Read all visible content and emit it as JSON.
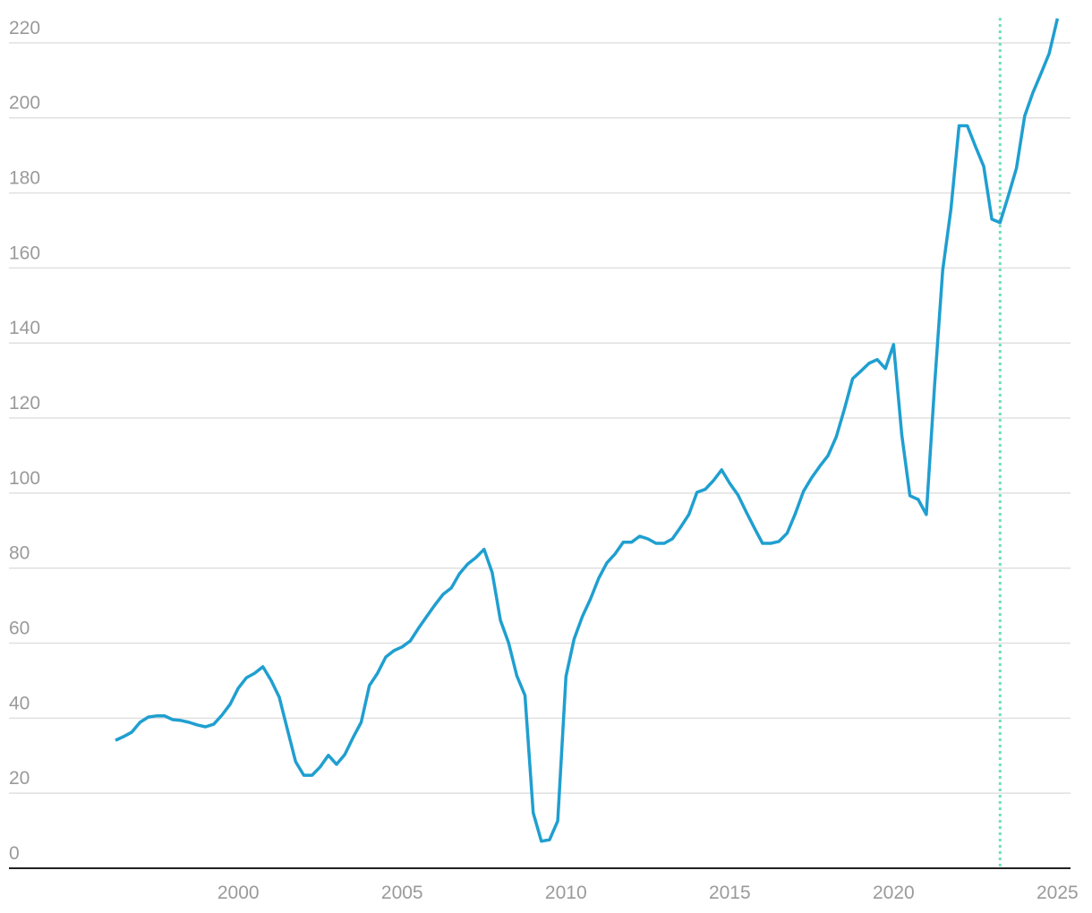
{
  "chart_data": {
    "type": "line",
    "x": [
      1996.25,
      1996.5,
      1996.75,
      1997,
      1997.25,
      1997.5,
      1997.75,
      1998,
      1998.25,
      1998.5,
      1998.75,
      1999,
      1999.25,
      1999.5,
      1999.75,
      2000,
      2000.25,
      2000.5,
      2000.75,
      2001,
      2001.25,
      2001.5,
      2001.75,
      2002,
      2002.25,
      2002.5,
      2002.75,
      2003,
      2003.25,
      2003.5,
      2003.75,
      2004,
      2004.25,
      2004.5,
      2004.75,
      2005,
      2005.25,
      2005.5,
      2005.75,
      2006,
      2006.25,
      2006.5,
      2006.75,
      2007,
      2007.25,
      2007.5,
      2007.75,
      2008,
      2008.25,
      2008.5,
      2008.75,
      2009,
      2009.25,
      2009.5,
      2009.75,
      2010,
      2010.25,
      2010.5,
      2010.75,
      2011,
      2011.25,
      2011.5,
      2011.75,
      2012,
      2012.25,
      2012.5,
      2012.75,
      2013,
      2013.25,
      2013.5,
      2013.75,
      2014,
      2014.25,
      2014.5,
      2014.75,
      2015,
      2015.25,
      2015.5,
      2015.75,
      2016,
      2016.25,
      2016.5,
      2016.75,
      2017,
      2017.25,
      2017.5,
      2017.75,
      2018,
      2018.25,
      2018.5,
      2018.75,
      2019,
      2019.25,
      2019.5,
      2019.75,
      2020,
      2020.25,
      2020.5,
      2020.75,
      2021,
      2021.25,
      2021.5,
      2021.75,
      2022,
      2022.25,
      2022.5,
      2022.75,
      2023,
      2023.25,
      2023.5,
      2023.75,
      2024,
      2024.25,
      2024.5,
      2024.75,
      2025
    ],
    "values": [
      34.1,
      35.1,
      36.3,
      38.9,
      40.3,
      40.6,
      40.6,
      39.6,
      39.4,
      38.9,
      38.2,
      37.7,
      38.4,
      40.8,
      43.7,
      48,
      50.8,
      52,
      53.7,
      50.1,
      45.6,
      37,
      28.4,
      24.8,
      24.8,
      27,
      30.1,
      27.7,
      30.3,
      34.8,
      38.9,
      48.7,
      52,
      56.3,
      58,
      59,
      60.6,
      64,
      67.1,
      70.2,
      73,
      74.7,
      78.5,
      81.1,
      82.8,
      85,
      78.8,
      66.1,
      60.1,
      51.3,
      46.1,
      14.8,
      7.2,
      7.6,
      12.6,
      51.1,
      61.1,
      67.1,
      71.8,
      77.3,
      81.4,
      83.8,
      86.9,
      86.9,
      88.5,
      87.8,
      86.6,
      86.6,
      87.8,
      90.9,
      94.3,
      100.2,
      101,
      103.3,
      106.2,
      102.6,
      99.5,
      95,
      90.7,
      86.6,
      86.6,
      87.1,
      89.3,
      94.5,
      100.5,
      104.1,
      107.2,
      110,
      115,
      122.4,
      130.5,
      132.5,
      134.6,
      135.6,
      133.2,
      139.6,
      115.5,
      99.3,
      98.3,
      94.3,
      128.6,
      159.4,
      175.7,
      197.9,
      197.9,
      192.4,
      187.1,
      173,
      172.1,
      179.2,
      186.6,
      200.5,
      206.7,
      211.9,
      217.2,
      226.5
    ],
    "color": "#1f9fd0",
    "vline_x": 2023.25,
    "vline_color": "#6ee0b8",
    "xlim": [
      1993,
      2025.4
    ],
    "xticks": [
      2000,
      2005,
      2010,
      2015,
      2020,
      2025
    ],
    "ylim": [
      0,
      230
    ],
    "yticks": [
      0,
      20,
      40,
      60,
      80,
      100,
      120,
      140,
      160,
      180,
      200,
      220
    ],
    "grid": true
  }
}
